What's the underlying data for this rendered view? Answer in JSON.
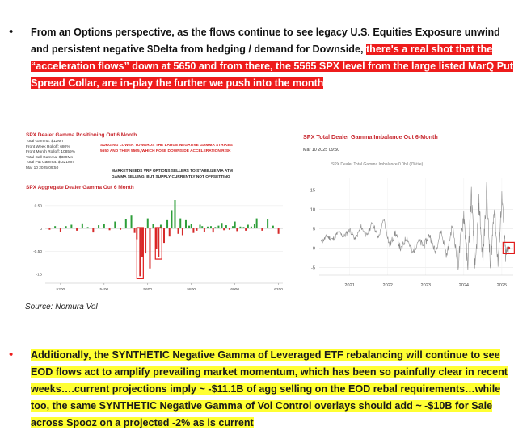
{
  "bullet1": {
    "marker": "•",
    "text_plain": "From an Options perspective, as the flows continue to see legacy U.S. Equities Exposure unwind and persistent negative $Delta from hedging / demand for Downside,",
    "text_highlight": "there's a real shot that the “acceleration flows” down at 5650 and from there, the 5565 SPX level from the large listed MarQ Put Spread Collar, are in-play the further we push into the month"
  },
  "left_chart": {
    "title": "SPX Dealer Gamma Positioning Out 6 Month",
    "stats": [
      "Total Gamma: $12Mn",
      "Front Week Rolloff: 680%",
      "Front Month Rolloff: 10859%",
      "Total Call Gamma: $339Mn",
      "Total Put Gamma: $-321Mn",
      "Mar 10 2025 09:50"
    ],
    "annotation_red": [
      "SURGING LOWER TOWARDS THE LARGE NEGATIVE GAMMA STRIKES",
      "5650 AND THEN 5565, WHICH POSE DOWNSIDE ACCELERATION RISK"
    ],
    "annotation_black": [
      "MARKET NEEDS VRP OPTIONS SELLERS TO STABILIZE VIA ATM",
      "GAMMA SELLING, BUT SUPPLY CURRENTLY NOT OFFSETTING"
    ],
    "subtitle": "SPX Aggregate Dealer Gamma Out 6 Month"
  },
  "right_chart": {
    "title": "SPX Total Dealer Gamma Imbalance Out 6-Month",
    "date": "Mar 10 2025 09:50",
    "legend": "SPX Dealer Total Gamma Imbalance 0.0bil (7%tile)"
  },
  "chart_data": [
    {
      "type": "bar",
      "subtitle": "SPX Aggregate Dealer Gamma Out 6 Month",
      "x_ticks": [
        "5200",
        "5400",
        "5600",
        "5800",
        "6000",
        "6200"
      ],
      "y_ticks": [
        "0.50",
        "0",
        "-0.50",
        "-1B"
      ],
      "xlim": [
        5130,
        6220
      ],
      "ylim": [
        -1.15,
        0.62
      ],
      "highlighted_strikes": [
        5565,
        5650
      ],
      "x": [
        5150,
        5175,
        5200,
        5225,
        5250,
        5275,
        5300,
        5325,
        5350,
        5375,
        5400,
        5425,
        5450,
        5475,
        5500,
        5525,
        5540,
        5550,
        5565,
        5575,
        5590,
        5600,
        5610,
        5625,
        5640,
        5650,
        5660,
        5675,
        5690,
        5700,
        5710,
        5725,
        5740,
        5750,
        5760,
        5775,
        5790,
        5800,
        5810,
        5825,
        5840,
        5850,
        5860,
        5875,
        5890,
        5900,
        5910,
        5925,
        5940,
        5950,
        5960,
        5975,
        5990,
        6000,
        6010,
        6025,
        6040,
        6050,
        6060,
        6075,
        6090,
        6100,
        6125,
        6150,
        6175,
        6200
      ],
      "values": [
        -0.03,
        0.05,
        -0.07,
        0.05,
        0.08,
        -0.05,
        0.11,
        0.03,
        -0.09,
        0.07,
        0.1,
        -0.04,
        0.15,
        -0.03,
        0.21,
        0.28,
        -0.1,
        -0.24,
        -1.05,
        -0.62,
        -0.55,
        0.22,
        -0.88,
        0.1,
        -0.46,
        -0.62,
        0.08,
        -0.32,
        0.18,
        -0.18,
        0.4,
        0.62,
        -0.12,
        0.22,
        -0.15,
        0.18,
        0.06,
        0.1,
        -0.1,
        -0.05,
        0.08,
        0.05,
        -0.08,
        0.04,
        0.05,
        -0.09,
        0.03,
        0.06,
        0.12,
        -0.04,
        0.07,
        -0.03,
        0.05,
        0.15,
        -0.06,
        0.04,
        0.03,
        -0.05,
        0.08,
        0.04,
        0.09,
        0.22,
        -0.05,
        0.2,
        0.06,
        -0.12
      ]
    },
    {
      "type": "line",
      "legend": "SPX Dealer Total Gamma Imbalance 0.0bil (7%tile)",
      "x_ticks": [
        "2021",
        "2022",
        "2023",
        "2024",
        "2025"
      ],
      "y_ticks": [
        "15",
        "10",
        "5",
        "0",
        "-5"
      ],
      "xlim": [
        2020.2,
        2025.3
      ],
      "ylim": [
        -7,
        18
      ],
      "current_value": 0.0,
      "x": [
        2020.25,
        2020.4,
        2020.55,
        2020.7,
        2020.85,
        2021.0,
        2021.15,
        2021.3,
        2021.45,
        2021.6,
        2021.75,
        2021.9,
        2022.05,
        2022.2,
        2022.35,
        2022.5,
        2022.65,
        2022.8,
        2022.95,
        2023.1,
        2023.25,
        2023.4,
        2023.55,
        2023.7,
        2023.85,
        2024.0,
        2024.1,
        2024.2,
        2024.3,
        2024.4,
        2024.5,
        2024.6,
        2024.7,
        2024.8,
        2024.9,
        2025.0,
        2025.1,
        2025.18
      ],
      "values": [
        1.5,
        3.0,
        2.2,
        4.0,
        3.0,
        4.8,
        2.2,
        5.5,
        3.0,
        6.8,
        2.5,
        7.5,
        0.5,
        4.0,
        -0.5,
        3.0,
        -1.5,
        2.0,
        0.5,
        3.5,
        -1.0,
        4.5,
        -2.0,
        6.0,
        -4.0,
        9.0,
        -5.0,
        14.0,
        -6.0,
        12.0,
        -3.5,
        15.0,
        -5.5,
        11.0,
        -4.0,
        13.0,
        -2.0,
        0.0
      ]
    }
  ],
  "source": "Source: Nomura Vol",
  "bullet2": {
    "marker": "•",
    "text": "Additionally, the SYNTHETIC Negative Gamma of Leveraged ETF rebalancing will continue to see EOD flows act to amplify prevailing market momentum, which has been so painfully clear in recent weeks….current projections imply ~ -$11.1B of agg selling on the EOD rebal requirements…while too, the same SYNTHETIC Negative Gamma of Vol Control overlays should add ~ -$10B for Sale across Spooz on a projected -2% as is current"
  },
  "colors": {
    "highlight_red": "#ee1c1c",
    "highlight_yellow": "#ffff33",
    "bar_positive": "#2e9e3a",
    "bar_negative": "#d62a2a",
    "title_red": "#c8282f",
    "line_gray": "#8a8a8a"
  }
}
